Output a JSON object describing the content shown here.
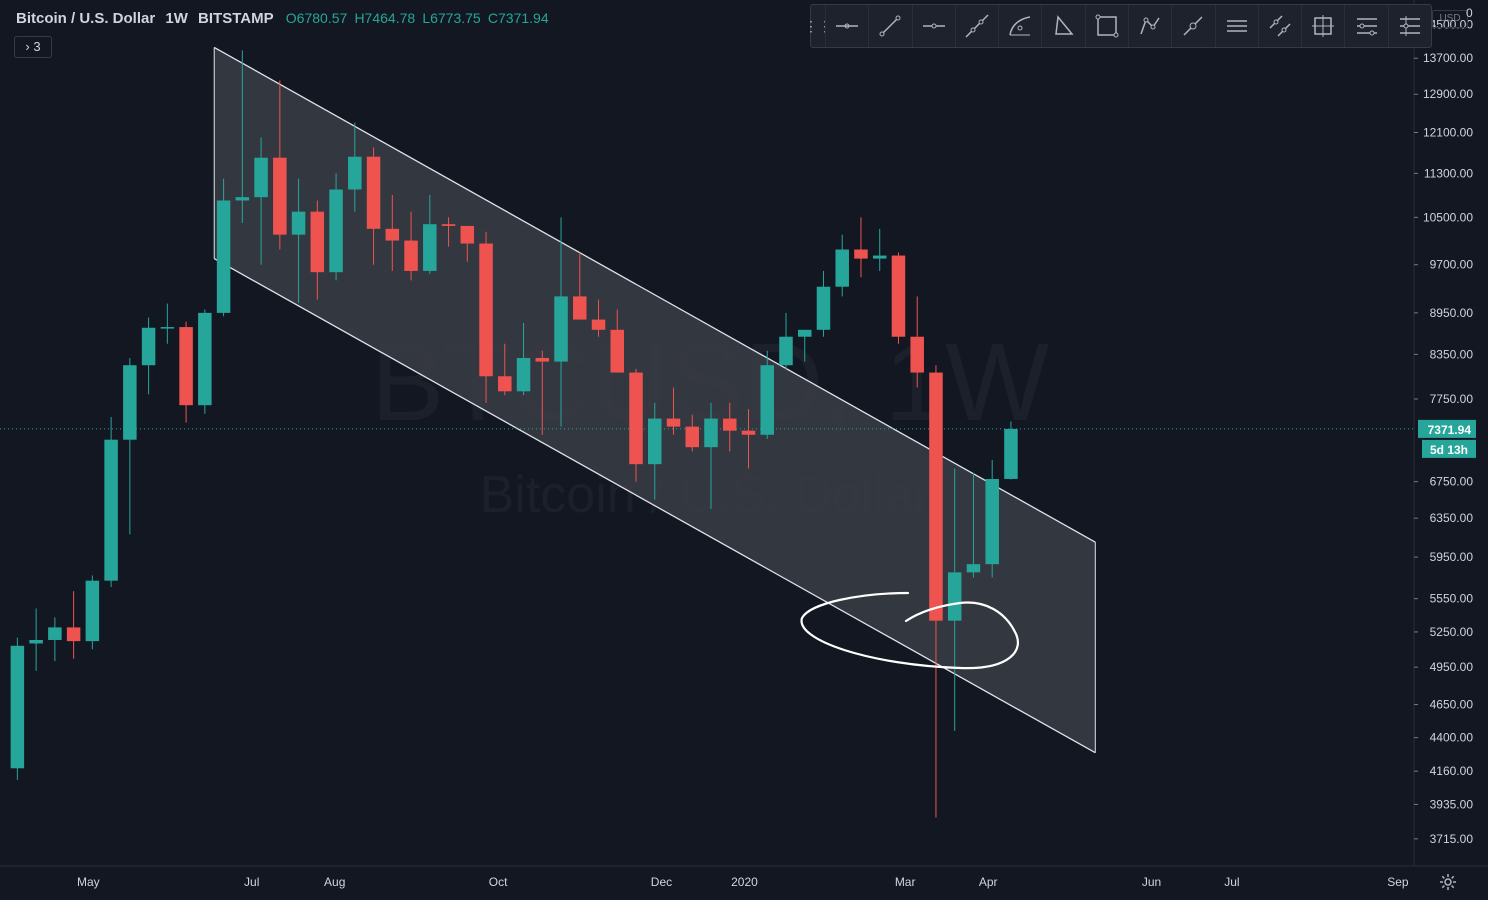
{
  "legend": {
    "symbol": "Bitcoin / U.S. Dollar",
    "interval": "1W",
    "exchange": "BITSTAMP",
    "open": "O6780.57",
    "high": "H7464.78",
    "low": "L6773.75",
    "close": "C7371.94",
    "indicators_button": "3"
  },
  "price_scale": {
    "currency": "USD",
    "corner_value": "0",
    "last_price_label": "7371.94",
    "countdown_label": "5d 13h"
  },
  "watermark": {
    "ticker": "BTCUSD, 1W",
    "name": "Bitcoin / U.S. Dollar"
  },
  "toolbar": {
    "tools": [
      "horizontal-line-icon",
      "trend-line-icon",
      "horizontal-ray-icon",
      "extended-line-icon",
      "arc-icon",
      "triangle-icon",
      "rectangle-icon",
      "path-icon",
      "info-line-icon",
      "parallel-channel-icon",
      "disjoint-channel-icon",
      "long-position-icon",
      "fib-retracement-icon",
      "pitchfork-icon"
    ]
  },
  "colors": {
    "background": "#131722",
    "up": "#26a69a",
    "down": "#ef5350",
    "channel_fill": "#3a3d45",
    "channel_line": "#e0e3eb",
    "price_line": "#26a69a"
  },
  "chart_data": {
    "type": "candlestick",
    "title": "Bitcoin / U.S. Dollar",
    "interval": "1W",
    "y_scale": "log",
    "ylim": [
      3550,
      15100
    ],
    "y_ticks": [
      14500,
      13700,
      12900,
      12100,
      11300,
      10500,
      9700,
      8950,
      8350,
      7750,
      6750,
      6350,
      5950,
      5550,
      5250,
      4950,
      4650,
      4400,
      4160,
      3935,
      3715
    ],
    "x_tick_labels": [
      "May",
      "Jul",
      "Aug",
      "Oct",
      "Dec",
      "2020",
      "Mar",
      "Apr",
      "Jun",
      "Jul",
      "Sep"
    ],
    "xlim": [
      "2019-04-01",
      "2020-09-07"
    ],
    "x_ticks": [
      "2019-05-01",
      "2019-07-01",
      "2019-08-01",
      "2019-10-01",
      "2019-12-01",
      "2020-01-01",
      "2020-03-01",
      "2020-04-01",
      "2020-06-01",
      "2020-07-01",
      "2020-09-01"
    ],
    "candles": [
      {
        "date": "2019-04-01",
        "o": 4180,
        "h": 5200,
        "l": 4100,
        "c": 5130
      },
      {
        "date": "2019-04-08",
        "o": 5150,
        "h": 5460,
        "l": 4920,
        "c": 5180
      },
      {
        "date": "2019-04-15",
        "o": 5180,
        "h": 5380,
        "l": 5000,
        "c": 5290
      },
      {
        "date": "2019-04-22",
        "o": 5290,
        "h": 5620,
        "l": 5020,
        "c": 5170
      },
      {
        "date": "2019-04-29",
        "o": 5170,
        "h": 5770,
        "l": 5100,
        "c": 5720
      },
      {
        "date": "2019-05-06",
        "o": 5720,
        "h": 7520,
        "l": 5660,
        "c": 7240
      },
      {
        "date": "2019-05-13",
        "o": 7240,
        "h": 8300,
        "l": 6180,
        "c": 8200
      },
      {
        "date": "2019-05-20",
        "o": 8200,
        "h": 8880,
        "l": 7810,
        "c": 8730
      },
      {
        "date": "2019-05-27",
        "o": 8730,
        "h": 9090,
        "l": 8500,
        "c": 8740
      },
      {
        "date": "2019-06-03",
        "o": 8740,
        "h": 8820,
        "l": 7450,
        "c": 7670
      },
      {
        "date": "2019-06-10",
        "o": 7670,
        "h": 9000,
        "l": 7560,
        "c": 8950
      },
      {
        "date": "2019-06-17",
        "o": 8950,
        "h": 11200,
        "l": 8900,
        "c": 10800
      },
      {
        "date": "2019-06-24",
        "o": 10800,
        "h": 13880,
        "l": 10400,
        "c": 10860
      },
      {
        "date": "2019-07-01",
        "o": 10860,
        "h": 12000,
        "l": 9700,
        "c": 11600
      },
      {
        "date": "2019-07-08",
        "o": 11600,
        "h": 13200,
        "l": 9950,
        "c": 10200
      },
      {
        "date": "2019-07-15",
        "o": 10200,
        "h": 11200,
        "l": 9100,
        "c": 10600
      },
      {
        "date": "2019-07-22",
        "o": 10600,
        "h": 10800,
        "l": 9150,
        "c": 9580
      },
      {
        "date": "2019-07-29",
        "o": 9580,
        "h": 11300,
        "l": 9450,
        "c": 11000
      },
      {
        "date": "2019-08-05",
        "o": 11000,
        "h": 12300,
        "l": 10600,
        "c": 11620
      },
      {
        "date": "2019-08-12",
        "o": 11620,
        "h": 11800,
        "l": 9700,
        "c": 10300
      },
      {
        "date": "2019-08-19",
        "o": 10300,
        "h": 10900,
        "l": 9600,
        "c": 10100
      },
      {
        "date": "2019-08-26",
        "o": 10100,
        "h": 10600,
        "l": 9450,
        "c": 9600
      },
      {
        "date": "2019-09-02",
        "o": 9600,
        "h": 10900,
        "l": 9550,
        "c": 10380
      },
      {
        "date": "2019-09-09",
        "o": 10380,
        "h": 10500,
        "l": 10000,
        "c": 10350
      },
      {
        "date": "2019-09-16",
        "o": 10350,
        "h": 10300,
        "l": 9750,
        "c": 10050
      },
      {
        "date": "2019-09-23",
        "o": 10050,
        "h": 10250,
        "l": 7700,
        "c": 8050
      },
      {
        "date": "2019-09-30",
        "o": 8050,
        "h": 8500,
        "l": 7800,
        "c": 7850
      },
      {
        "date": "2019-10-07",
        "o": 7850,
        "h": 8800,
        "l": 7800,
        "c": 8300
      },
      {
        "date": "2019-10-14",
        "o": 8300,
        "h": 8400,
        "l": 7300,
        "c": 8250
      },
      {
        "date": "2019-10-21",
        "o": 8250,
        "h": 10500,
        "l": 7400,
        "c": 9200
      },
      {
        "date": "2019-10-28",
        "o": 9200,
        "h": 9900,
        "l": 8900,
        "c": 8850
      },
      {
        "date": "2019-11-04",
        "o": 8850,
        "h": 9150,
        "l": 8600,
        "c": 8700
      },
      {
        "date": "2019-11-11",
        "o": 8700,
        "h": 9000,
        "l": 8200,
        "c": 8100
      },
      {
        "date": "2019-11-18",
        "o": 8100,
        "h": 8150,
        "l": 6750,
        "c": 6950
      },
      {
        "date": "2019-11-25",
        "o": 6950,
        "h": 7700,
        "l": 6550,
        "c": 7500
      },
      {
        "date": "2019-12-02",
        "o": 7500,
        "h": 7900,
        "l": 7300,
        "c": 7400
      },
      {
        "date": "2019-12-09",
        "o": 7400,
        "h": 7550,
        "l": 7100,
        "c": 7150
      },
      {
        "date": "2019-12-16",
        "o": 7150,
        "h": 7700,
        "l": 6450,
        "c": 7500
      },
      {
        "date": "2019-12-23",
        "o": 7500,
        "h": 7700,
        "l": 7100,
        "c": 7350
      },
      {
        "date": "2019-12-30",
        "o": 7350,
        "h": 7620,
        "l": 6900,
        "c": 7300
      },
      {
        "date": "2020-01-06",
        "o": 7300,
        "h": 8400,
        "l": 7250,
        "c": 8200
      },
      {
        "date": "2020-01-13",
        "o": 8200,
        "h": 8950,
        "l": 8150,
        "c": 8600
      },
      {
        "date": "2020-01-20",
        "o": 8600,
        "h": 8700,
        "l": 8250,
        "c": 8700
      },
      {
        "date": "2020-01-27",
        "o": 8700,
        "h": 9600,
        "l": 8600,
        "c": 9350
      },
      {
        "date": "2020-02-03",
        "o": 9350,
        "h": 10200,
        "l": 9200,
        "c": 9950
      },
      {
        "date": "2020-02-10",
        "o": 9950,
        "h": 10500,
        "l": 9500,
        "c": 9800
      },
      {
        "date": "2020-02-17",
        "o": 9800,
        "h": 10300,
        "l": 9600,
        "c": 9850
      },
      {
        "date": "2020-02-24",
        "o": 9850,
        "h": 9900,
        "l": 8500,
        "c": 8600
      },
      {
        "date": "2020-03-02",
        "o": 8600,
        "h": 9200,
        "l": 7900,
        "c": 8100
      },
      {
        "date": "2020-03-09",
        "o": 8100,
        "h": 8200,
        "l": 3850,
        "c": 5350
      },
      {
        "date": "2020-03-16",
        "o": 5350,
        "h": 6900,
        "l": 4450,
        "c": 5800
      },
      {
        "date": "2020-03-23",
        "o": 5800,
        "h": 6850,
        "l": 5750,
        "c": 5880
      },
      {
        "date": "2020-03-30",
        "o": 5880,
        "h": 7000,
        "l": 5750,
        "c": 6780
      },
      {
        "date": "2020-04-06",
        "o": 6780.57,
        "h": 7464.78,
        "l": 6773.75,
        "c": 7371.94
      }
    ],
    "channel": {
      "upper": [
        {
          "date": "2019-06-17",
          "price": 13950
        },
        {
          "date": "2020-05-11",
          "price": 6100
        }
      ],
      "lower": [
        {
          "date": "2019-06-17",
          "price": 9800
        },
        {
          "date": "2020-05-11",
          "price": 4290
        }
      ]
    },
    "last_price": 7371.94
  }
}
